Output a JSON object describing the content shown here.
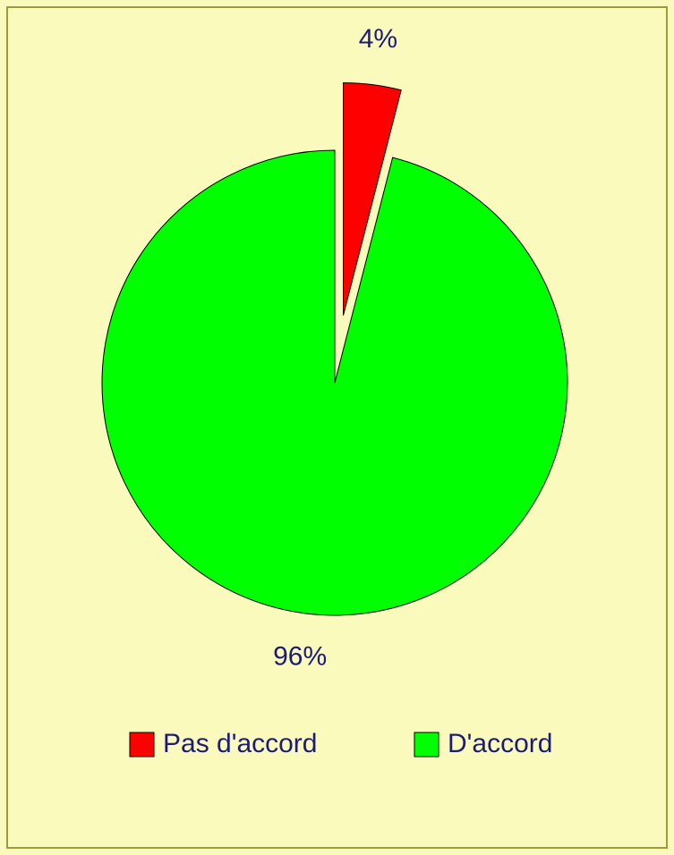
{
  "chart_data": {
    "type": "pie",
    "categories": [
      "Pas d'accord",
      "D'accord"
    ],
    "values": [
      4,
      96
    ],
    "value_labels": [
      "4%",
      "96%"
    ],
    "colors": [
      "#ff0000",
      "#00ff00"
    ],
    "explode": [
      true,
      false
    ],
    "legend": "bottom"
  }
}
